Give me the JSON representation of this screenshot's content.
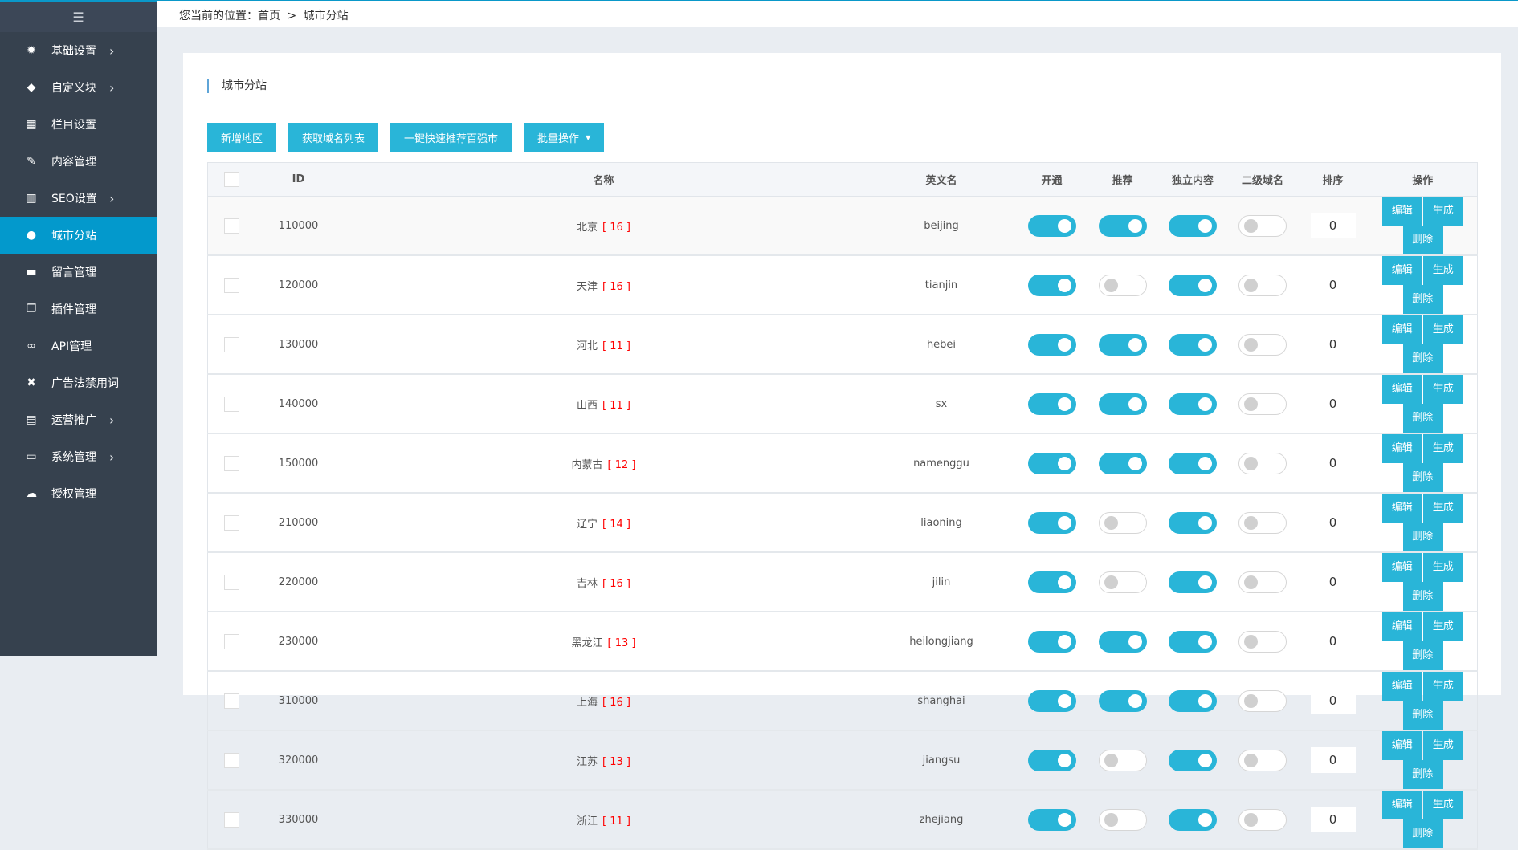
{
  "sidebar": {
    "toggle_icon": "menu-fold-icon",
    "items": [
      {
        "label": "基础设置",
        "icon": "gear-icon",
        "glyph": "✹",
        "chevron": true
      },
      {
        "label": "自定义块",
        "icon": "tag-icon",
        "glyph": "◆",
        "chevron": true
      },
      {
        "label": "栏目设置",
        "icon": "grid-icon",
        "glyph": "▦",
        "chevron": false
      },
      {
        "label": "内容管理",
        "icon": "edit-icon",
        "glyph": "✎",
        "chevron": false
      },
      {
        "label": "SEO设置",
        "icon": "bar-chart-icon",
        "glyph": "▥",
        "chevron": true
      },
      {
        "label": "城市分站",
        "icon": "globe-icon",
        "glyph": "●",
        "chevron": false,
        "active": true
      },
      {
        "label": "留言管理",
        "icon": "comment-icon",
        "glyph": "▬",
        "chevron": false
      },
      {
        "label": "插件管理",
        "icon": "copy-icon",
        "glyph": "❐",
        "chevron": false
      },
      {
        "label": "API管理",
        "icon": "link-icon",
        "glyph": "∞",
        "chevron": false
      },
      {
        "label": "广告法禁用词",
        "icon": "close-box-icon",
        "glyph": "✖",
        "chevron": false
      },
      {
        "label": "运营推广",
        "icon": "table-icon",
        "glyph": "▤",
        "chevron": true
      },
      {
        "label": "系统管理",
        "icon": "monitor-icon",
        "glyph": "▭",
        "chevron": true
      },
      {
        "label": "授权管理",
        "icon": "cloud-upload-icon",
        "glyph": "☁",
        "chevron": false
      }
    ]
  },
  "breadcrumb": {
    "prefix": "您当前的位置：",
    "home": "首页",
    "sep": ">",
    "current": "城市分站"
  },
  "card": {
    "title": "城市分站"
  },
  "toolbar": {
    "add": "新增地区",
    "fetch": "获取域名列表",
    "recommend": "一键快速推荐百强市",
    "batch": "批量操作"
  },
  "table": {
    "headers": [
      "ID",
      "名称",
      "英文名",
      "开通",
      "推荐",
      "独立内容",
      "二级域名",
      "排序",
      "操作"
    ],
    "actions": [
      "编辑",
      "生成",
      "删除"
    ],
    "rows": [
      {
        "id": "110000",
        "name": "北京",
        "count": "[ 16 ]",
        "en": "beijing",
        "open": true,
        "recommend": true,
        "independent": true,
        "subdomain": false,
        "sort": "0"
      },
      {
        "id": "120000",
        "name": "天津",
        "count": "[ 16 ]",
        "en": "tianjin",
        "open": true,
        "recommend": false,
        "independent": true,
        "subdomain": false,
        "sort": "0"
      },
      {
        "id": "130000",
        "name": "河北",
        "count": "[ 11 ]",
        "en": "hebei",
        "open": true,
        "recommend": true,
        "independent": true,
        "subdomain": false,
        "sort": "0"
      },
      {
        "id": "140000",
        "name": "山西",
        "count": "[ 11 ]",
        "en": "sx",
        "open": true,
        "recommend": true,
        "independent": true,
        "subdomain": false,
        "sort": "0"
      },
      {
        "id": "150000",
        "name": "内蒙古",
        "count": "[ 12 ]",
        "en": "namenggu",
        "open": true,
        "recommend": true,
        "independent": true,
        "subdomain": false,
        "sort": "0"
      },
      {
        "id": "210000",
        "name": "辽宁",
        "count": "[ 14 ]",
        "en": "liaoning",
        "open": true,
        "recommend": false,
        "independent": true,
        "subdomain": false,
        "sort": "0"
      },
      {
        "id": "220000",
        "name": "吉林",
        "count": "[ 16 ]",
        "en": "jilin",
        "open": true,
        "recommend": false,
        "independent": true,
        "subdomain": false,
        "sort": "0"
      },
      {
        "id": "230000",
        "name": "黑龙江",
        "count": "[ 13 ]",
        "en": "heilongjiang",
        "open": true,
        "recommend": true,
        "independent": true,
        "subdomain": false,
        "sort": "0"
      },
      {
        "id": "310000",
        "name": "上海",
        "count": "[ 16 ]",
        "en": "shanghai",
        "open": true,
        "recommend": true,
        "independent": true,
        "subdomain": false,
        "sort": "0"
      },
      {
        "id": "320000",
        "name": "江苏",
        "count": "[ 13 ]",
        "en": "jiangsu",
        "open": true,
        "recommend": false,
        "independent": true,
        "subdomain": false,
        "sort": "0"
      },
      {
        "id": "330000",
        "name": "浙江",
        "count": "[ 11 ]",
        "en": "zhejiang",
        "open": true,
        "recommend": false,
        "independent": true,
        "subdomain": false,
        "sort": "0"
      }
    ]
  },
  "colors": {
    "accent": "#29b5d8",
    "sidebar": "#36414e",
    "active": "#0399cc",
    "count": "#ff0000"
  }
}
